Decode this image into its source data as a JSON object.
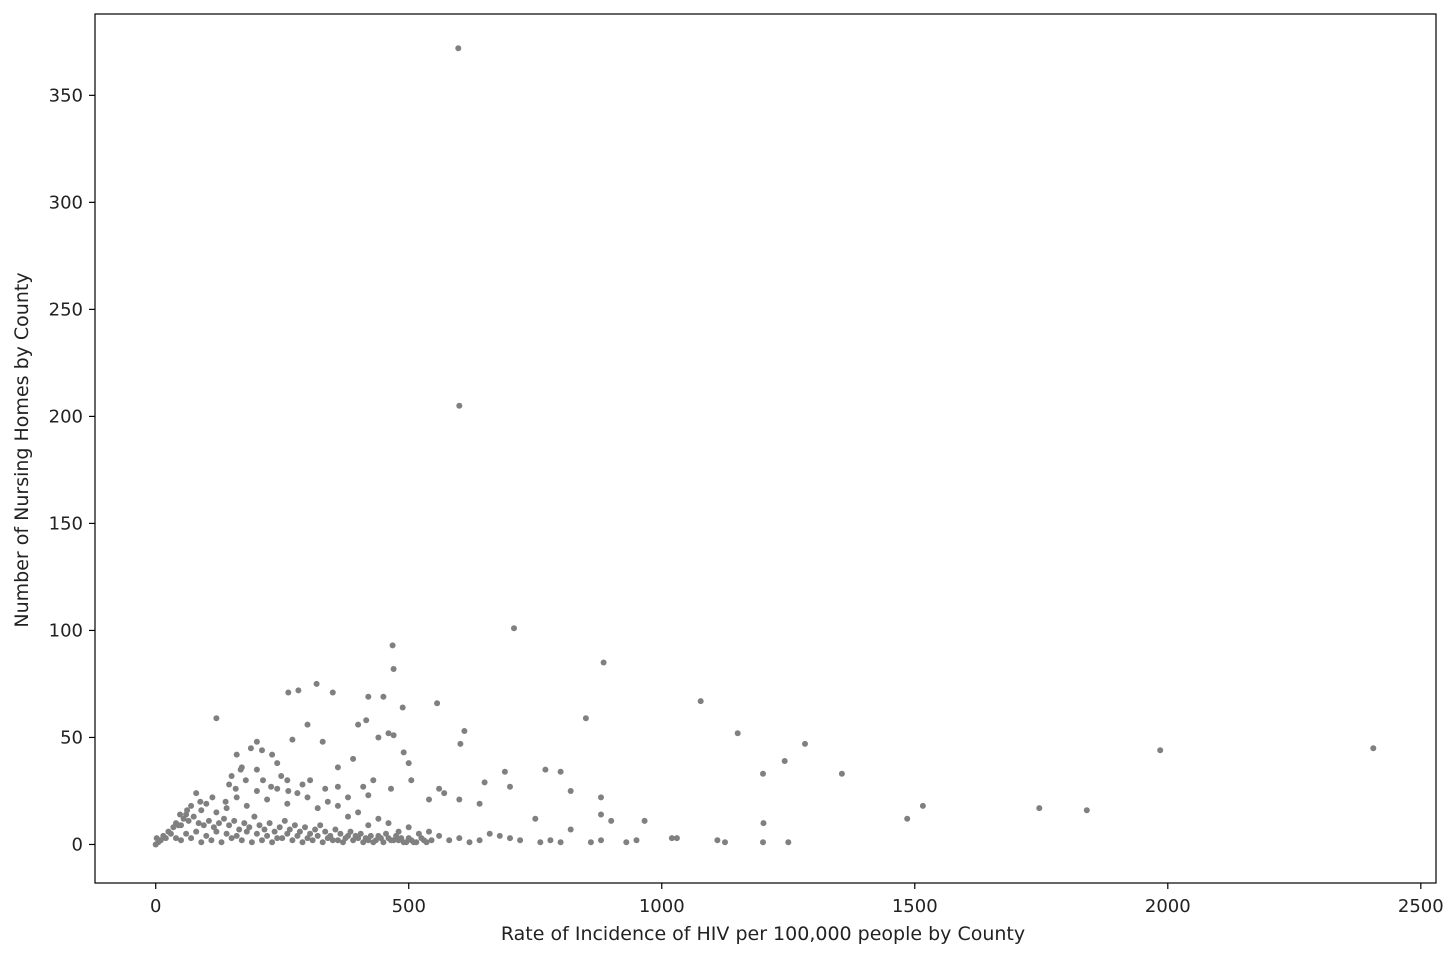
{
  "chart_data": {
    "type": "scatter",
    "xlabel": "Rate of Incidence of HIV per 100,000 people by County",
    "ylabel": "Number of Nursing Homes by County",
    "xlim": [
      -120,
      2530
    ],
    "ylim": [
      -18,
      388
    ],
    "x_ticks": [
      0,
      500,
      1000,
      1500,
      2000,
      2500
    ],
    "y_ticks": [
      0,
      50,
      100,
      150,
      200,
      250,
      300,
      350
    ],
    "grid": false,
    "marker_color": "#808080",
    "series": [
      {
        "points": [
          [
            598,
            372
          ],
          [
            600,
            205
          ],
          [
            708,
            101
          ],
          [
            468,
            93
          ],
          [
            885,
            85
          ],
          [
            470,
            82
          ],
          [
            318,
            75
          ],
          [
            282,
            72
          ],
          [
            262,
            71
          ],
          [
            350,
            71
          ],
          [
            420,
            69
          ],
          [
            450,
            69
          ],
          [
            1077,
            67
          ],
          [
            556,
            66
          ],
          [
            488,
            64
          ],
          [
            120,
            59
          ],
          [
            850,
            59
          ],
          [
            416,
            58
          ],
          [
            300,
            56
          ],
          [
            400,
            56
          ],
          [
            610,
            53
          ],
          [
            1150,
            52
          ],
          [
            460,
            52
          ],
          [
            470,
            51
          ],
          [
            440,
            50
          ],
          [
            270,
            49
          ],
          [
            330,
            48
          ],
          [
            1283,
            47
          ],
          [
            200,
            48
          ],
          [
            602,
            47
          ],
          [
            1985,
            44
          ],
          [
            2406,
            45
          ],
          [
            230,
            42
          ],
          [
            490,
            43
          ],
          [
            390,
            40
          ],
          [
            160,
            42
          ],
          [
            1243,
            39
          ],
          [
            240,
            38
          ],
          [
            500,
            38
          ],
          [
            360,
            36
          ],
          [
            770,
            35
          ],
          [
            200,
            35
          ],
          [
            690,
            34
          ],
          [
            800,
            34
          ],
          [
            1200,
            33
          ],
          [
            1356,
            33
          ],
          [
            150,
            32
          ],
          [
            260,
            30
          ],
          [
            430,
            30
          ],
          [
            650,
            29
          ],
          [
            290,
            28
          ],
          [
            700,
            27
          ],
          [
            560,
            26
          ],
          [
            360,
            27
          ],
          [
            820,
            25
          ],
          [
            570,
            24
          ],
          [
            420,
            23
          ],
          [
            880,
            22
          ],
          [
            540,
            21
          ],
          [
            600,
            21
          ],
          [
            640,
            19
          ],
          [
            1516,
            18
          ],
          [
            1746,
            17
          ],
          [
            1840,
            16
          ],
          [
            880,
            14
          ],
          [
            900,
            11
          ],
          [
            966,
            11
          ],
          [
            1485,
            12
          ],
          [
            1201,
            10
          ],
          [
            820,
            7
          ],
          [
            750,
            12
          ],
          [
            1020,
            3
          ],
          [
            1030,
            3
          ],
          [
            1110,
            2
          ],
          [
            1125,
            1
          ],
          [
            1200,
            1
          ],
          [
            1250,
            1
          ],
          [
            950,
            2
          ],
          [
            930,
            1
          ],
          [
            880,
            2
          ],
          [
            860,
            1
          ],
          [
            800,
            1
          ],
          [
            780,
            2
          ],
          [
            760,
            1
          ],
          [
            720,
            2
          ],
          [
            700,
            3
          ],
          [
            680,
            4
          ],
          [
            660,
            5
          ],
          [
            640,
            2
          ],
          [
            620,
            1
          ],
          [
            600,
            3
          ],
          [
            580,
            2
          ],
          [
            560,
            4
          ],
          [
            540,
            6
          ],
          [
            520,
            5
          ],
          [
            500,
            8
          ],
          [
            480,
            6
          ],
          [
            460,
            10
          ],
          [
            440,
            12
          ],
          [
            420,
            9
          ],
          [
            400,
            15
          ],
          [
            380,
            13
          ],
          [
            360,
            18
          ],
          [
            340,
            20
          ],
          [
            320,
            17
          ],
          [
            300,
            22
          ],
          [
            280,
            24
          ],
          [
            260,
            19
          ],
          [
            240,
            26
          ],
          [
            220,
            21
          ],
          [
            200,
            25
          ],
          [
            180,
            18
          ],
          [
            160,
            22
          ],
          [
            140,
            17
          ],
          [
            120,
            15
          ],
          [
            100,
            19
          ],
          [
            80,
            24
          ],
          [
            60,
            14
          ],
          [
            40,
            10
          ],
          [
            30,
            5
          ],
          [
            20,
            3
          ],
          [
            10,
            2
          ],
          [
            5,
            1
          ],
          [
            0,
            0
          ],
          [
            2,
            3
          ],
          [
            15,
            4
          ],
          [
            25,
            6
          ],
          [
            35,
            8
          ],
          [
            45,
            9
          ],
          [
            55,
            12
          ],
          [
            65,
            11
          ],
          [
            75,
            13
          ],
          [
            85,
            10
          ],
          [
            95,
            9
          ],
          [
            105,
            11
          ],
          [
            115,
            8
          ],
          [
            125,
            10
          ],
          [
            135,
            12
          ],
          [
            145,
            9
          ],
          [
            155,
            11
          ],
          [
            165,
            7
          ],
          [
            175,
            10
          ],
          [
            185,
            8
          ],
          [
            195,
            13
          ],
          [
            205,
            9
          ],
          [
            215,
            7
          ],
          [
            225,
            10
          ],
          [
            235,
            6
          ],
          [
            245,
            8
          ],
          [
            255,
            11
          ],
          [
            265,
            7
          ],
          [
            275,
            9
          ],
          [
            285,
            6
          ],
          [
            295,
            8
          ],
          [
            305,
            5
          ],
          [
            315,
            7
          ],
          [
            325,
            9
          ],
          [
            335,
            6
          ],
          [
            345,
            4
          ],
          [
            355,
            7
          ],
          [
            365,
            5
          ],
          [
            375,
            3
          ],
          [
            385,
            6
          ],
          [
            395,
            4
          ],
          [
            405,
            5
          ],
          [
            415,
            3
          ],
          [
            425,
            4
          ],
          [
            435,
            2
          ],
          [
            445,
            3
          ],
          [
            455,
            5
          ],
          [
            465,
            2
          ],
          [
            475,
            4
          ],
          [
            485,
            3
          ],
          [
            495,
            1
          ],
          [
            505,
            2
          ],
          [
            515,
            1
          ],
          [
            525,
            3
          ],
          [
            535,
            1
          ],
          [
            545,
            2
          ],
          [
            50,
            2
          ],
          [
            70,
            3
          ],
          [
            90,
            1
          ],
          [
            110,
            2
          ],
          [
            130,
            1
          ],
          [
            150,
            3
          ],
          [
            170,
            2
          ],
          [
            190,
            1
          ],
          [
            210,
            2
          ],
          [
            230,
            1
          ],
          [
            250,
            3
          ],
          [
            270,
            2
          ],
          [
            290,
            1
          ],
          [
            310,
            2
          ],
          [
            330,
            1
          ],
          [
            350,
            2
          ],
          [
            370,
            1
          ],
          [
            390,
            2
          ],
          [
            410,
            1
          ],
          [
            430,
            1
          ],
          [
            450,
            1
          ],
          [
            470,
            2
          ],
          [
            490,
            1
          ],
          [
            510,
            1
          ],
          [
            530,
            2
          ],
          [
            60,
            5
          ],
          [
            80,
            6
          ],
          [
            100,
            4
          ],
          [
            120,
            6
          ],
          [
            140,
            5
          ],
          [
            160,
            4
          ],
          [
            180,
            6
          ],
          [
            200,
            5
          ],
          [
            220,
            4
          ],
          [
            240,
            3
          ],
          [
            260,
            5
          ],
          [
            280,
            4
          ],
          [
            300,
            3
          ],
          [
            320,
            4
          ],
          [
            340,
            3
          ],
          [
            360,
            2
          ],
          [
            380,
            4
          ],
          [
            400,
            3
          ],
          [
            420,
            2
          ],
          [
            440,
            4
          ],
          [
            460,
            3
          ],
          [
            480,
            2
          ],
          [
            500,
            3
          ],
          [
            48,
            14
          ],
          [
            62,
            16
          ],
          [
            88,
            20
          ],
          [
            112,
            22
          ],
          [
            138,
            20
          ],
          [
            158,
            26
          ],
          [
            178,
            30
          ],
          [
            168,
            35
          ],
          [
            212,
            30
          ],
          [
            248,
            32
          ],
          [
            228,
            27
          ],
          [
            262,
            25
          ],
          [
            305,
            30
          ],
          [
            335,
            26
          ],
          [
            380,
            22
          ],
          [
            410,
            27
          ],
          [
            465,
            26
          ],
          [
            505,
            30
          ],
          [
            188,
            45
          ],
          [
            210,
            44
          ],
          [
            170,
            36
          ],
          [
            145,
            28
          ],
          [
            90,
            16
          ],
          [
            70,
            18
          ],
          [
            50,
            9
          ],
          [
            40,
            3
          ]
        ]
      }
    ]
  }
}
